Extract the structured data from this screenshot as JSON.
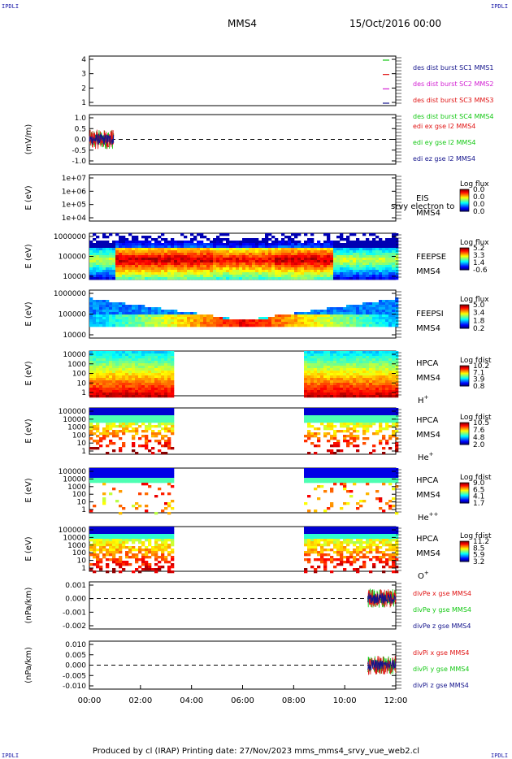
{
  "corner_label": "IPDLI",
  "header": {
    "title": "MMS4",
    "date": "15/Oct/2016 00:00"
  },
  "footer": {
    "text": "Produced by cl (IRAP)    Printing date: 27/Nov/2023    mms_mms4_srvy_vue_web2.cl"
  },
  "colors": {
    "mms1": "#14148c",
    "mms2": "#d21ed2",
    "mms3": "#e01414",
    "mms4": "#14c814",
    "x": "#e01414",
    "y": "#14c814",
    "z": "#14148c"
  },
  "chart_data": {
    "type": "multi-panel",
    "x": {
      "ticks": [
        "00:00",
        "02:00",
        "04:00",
        "06:00",
        "08:00",
        "10:00",
        "12:00"
      ],
      "range_hours": [
        0,
        12
      ]
    },
    "panels": [
      {
        "id": "burst",
        "type": "burst-intervals",
        "yticks": [
          "4",
          "3",
          "2",
          "1"
        ],
        "legend": [
          {
            "text": "des dist burst SC1 MMS1",
            "color": "#14148c"
          },
          {
            "text": "des dist burst SC2 MMS2",
            "color": "#d21ed2"
          },
          {
            "text": "des dist burst SC3 MMS3",
            "color": "#e01414"
          },
          {
            "text": "des dist burst SC4 MMS4",
            "color": "#14c814"
          }
        ]
      },
      {
        "id": "edi",
        "type": "line",
        "ylabel": "(mV/m)",
        "yticks": [
          "1.0",
          "0.5",
          "0.0",
          "-0.5",
          "-1.0"
        ],
        "ylim": [
          -1.25,
          1.25
        ],
        "data_range_hours": [
          0,
          0.95
        ],
        "legend": [
          {
            "text": "edi ex gse l2 MMS4",
            "color": "#e01414"
          },
          {
            "text": "edi ey gse l2 MMS4",
            "color": "#14c814"
          },
          {
            "text": "edi ez gse l2 MMS4",
            "color": "#14148c"
          }
        ]
      },
      {
        "id": "eis",
        "type": "heatmap",
        "ylabel": "E (eV)",
        "yticks": [
          "1e+07",
          "1e+06",
          "1e+05",
          "1e+04"
        ],
        "labels": [
          "EIS",
          "MMS4"
        ],
        "overlay_text": "srvy electron to",
        "colorbar": {
          "title": "Log flux",
          "ticks": [
            "0.0",
            "0.0",
            "0.0",
            "0.0"
          ]
        }
      },
      {
        "id": "feepse",
        "type": "heatmap",
        "ylabel": "E (eV)",
        "yticks": [
          "1000000",
          "100000",
          "10000"
        ],
        "labels": [
          "FEEPSE",
          "MMS4"
        ],
        "colorbar": {
          "title": "Log flux",
          "ticks": [
            "5.2",
            "3.3",
            "1.4",
            "-0.6"
          ]
        }
      },
      {
        "id": "feepsi",
        "type": "heatmap",
        "ylabel": "E (eV)",
        "yticks": [
          "1000000",
          "100000",
          "10000"
        ],
        "labels": [
          "FEEPSI",
          "MMS4"
        ],
        "colorbar": {
          "title": "Log flux",
          "ticks": [
            "5.0",
            "3.4",
            "1.8",
            "0.2"
          ]
        }
      },
      {
        "id": "hpca_h",
        "type": "heatmap",
        "ylabel": "E (eV)",
        "yticks": [
          "10000",
          "1000",
          "100",
          "10",
          "1"
        ],
        "labels": [
          "HPCA",
          "MMS4"
        ],
        "species": "H",
        "species_sup": "+",
        "data_intervals_hours": [
          [
            0,
            3.2
          ],
          [
            8.4,
            12
          ]
        ],
        "colorbar": {
          "title": "Log fdist",
          "ticks": [
            "10.2",
            "7.1",
            "3.9",
            "0.8"
          ]
        }
      },
      {
        "id": "hpca_he",
        "type": "heatmap",
        "ylabel": "E (eV)",
        "yticks": [
          "100000",
          "10000",
          "1000",
          "100",
          "10",
          "1"
        ],
        "labels": [
          "HPCA",
          "MMS4"
        ],
        "species": "He",
        "species_sup": "+",
        "data_intervals_hours": [
          [
            0,
            3.2
          ],
          [
            8.4,
            12
          ]
        ],
        "colorbar": {
          "title": "Log fdist",
          "ticks": [
            "10.5",
            "7.6",
            "4.8",
            "2.0"
          ]
        }
      },
      {
        "id": "hpca_hepp",
        "type": "heatmap",
        "ylabel": "E (eV)",
        "yticks": [
          "100000",
          "10000",
          "1000",
          "100",
          "10",
          "1"
        ],
        "labels": [
          "HPCA",
          "MMS4"
        ],
        "species": "He",
        "species_sup": "++",
        "data_intervals_hours": [
          [
            0,
            3.2
          ],
          [
            8.4,
            12
          ]
        ],
        "colorbar": {
          "title": "Log fdist",
          "ticks": [
            "9.0",
            "6.5",
            "4.1",
            "1.7"
          ]
        }
      },
      {
        "id": "hpca_o",
        "type": "heatmap",
        "ylabel": "E (eV)",
        "yticks": [
          "100000",
          "10000",
          "1000",
          "100",
          "10",
          "1"
        ],
        "labels": [
          "HPCA",
          "MMS4"
        ],
        "species": "O",
        "species_sup": "+",
        "data_intervals_hours": [
          [
            0,
            3.2
          ],
          [
            8.4,
            12
          ]
        ],
        "colorbar": {
          "title": "Log fdist",
          "ticks": [
            "11.2",
            "8.5",
            "5.9",
            "3.2"
          ]
        }
      },
      {
        "id": "divpe",
        "type": "line",
        "ylabel": "(nPa/km)",
        "yticks": [
          "0.001",
          "0.000",
          "-0.001",
          "-0.002"
        ],
        "ylim": [
          -0.0022,
          0.0012
        ],
        "data_range_hours": [
          10.9,
          12
        ],
        "legend": [
          {
            "text": "divPe x gse MMS4",
            "color": "#e01414"
          },
          {
            "text": "divPe y gse MMS4",
            "color": "#14c814"
          },
          {
            "text": "divPe z gse MMS4",
            "color": "#14148c"
          }
        ]
      },
      {
        "id": "divpi",
        "type": "line",
        "ylabel": "(nPa/km)",
        "yticks": [
          "0.010",
          "0.005",
          "0.000",
          "-0.005",
          "-0.010"
        ],
        "ylim": [
          -0.013,
          0.013
        ],
        "data_range_hours": [
          10.9,
          12
        ],
        "legend": [
          {
            "text": "divPi x gse MMS4",
            "color": "#e01414"
          },
          {
            "text": "divPi y gse MMS4",
            "color": "#14c814"
          },
          {
            "text": "divPi z gse MMS4",
            "color": "#14148c"
          }
        ]
      }
    ]
  }
}
